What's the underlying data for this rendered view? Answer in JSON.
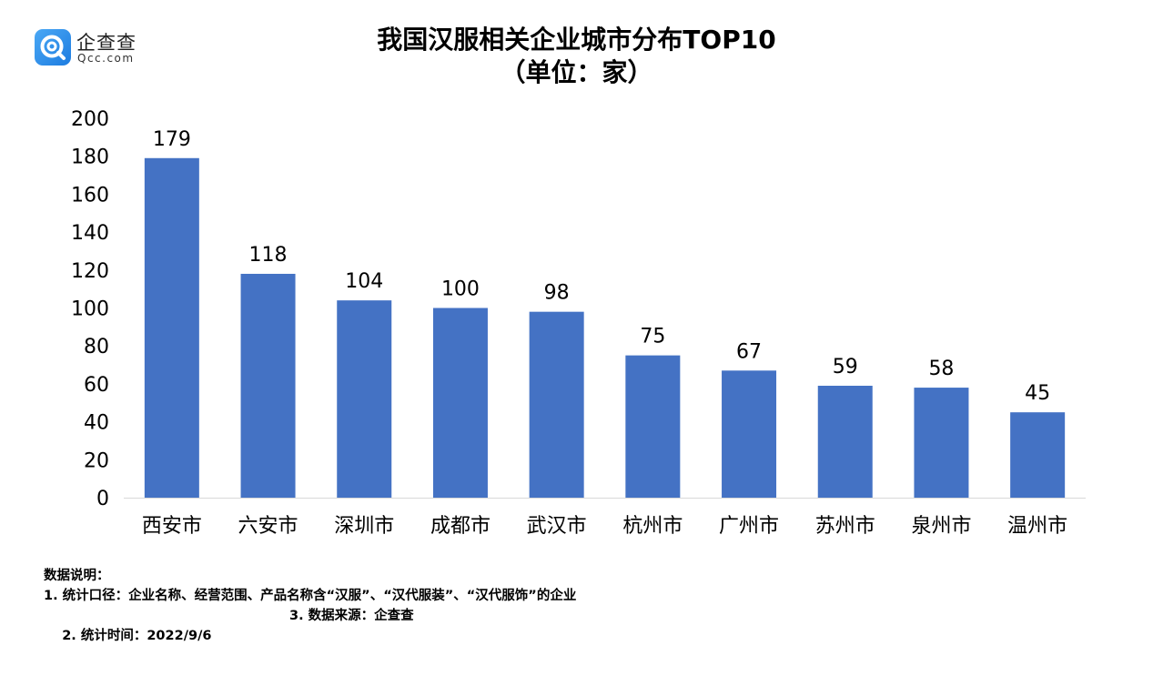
{
  "logo": {
    "name": "企查查",
    "domain": "Qcc.com",
    "icon": "magnifier-q-icon",
    "color": "#2b8ef0"
  },
  "title": {
    "line1": "我国汉服相关企业城市分布TOP10",
    "line2": "（单位：家）"
  },
  "chart_data": {
    "type": "bar",
    "title": "我国汉服相关企业城市分布TOP10",
    "subtitle": "（单位：家）",
    "categories": [
      "西安市",
      "六安市",
      "深圳市",
      "成都市",
      "武汉市",
      "杭州市",
      "广州市",
      "苏州市",
      "泉州市",
      "温州市"
    ],
    "values": [
      179,
      118,
      104,
      100,
      98,
      75,
      67,
      59,
      58,
      45
    ],
    "ylim": [
      0,
      200
    ],
    "yticks": [
      0,
      20,
      40,
      60,
      80,
      100,
      120,
      140,
      160,
      180,
      200
    ],
    "xlabel": "",
    "ylabel": "",
    "data_labels": true,
    "grid": false,
    "bar_color": "#4472c4"
  },
  "notes": {
    "heading": "数据说明：",
    "line1": "1. 统计口径：企业名称、经营范围、产品名称含“汉服”、“汉代服装”、“汉代服饰”的企业",
    "time": "2. 统计时间：2022/9/6",
    "source": "3. 数据来源：企查查"
  }
}
